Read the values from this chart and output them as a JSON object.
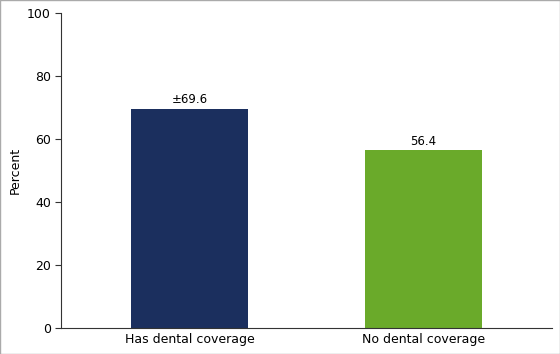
{
  "categories": [
    "Has dental coverage",
    "No dental coverage"
  ],
  "values": [
    69.6,
    56.4
  ],
  "bar_colors": [
    "#1b2f5e",
    "#6aaa2a"
  ],
  "bar_labels": [
    "±69.6",
    "56.4"
  ],
  "ylabel": "Percent",
  "ylim": [
    0,
    100
  ],
  "yticks": [
    0,
    20,
    40,
    60,
    80,
    100
  ],
  "bar_width": 0.5,
  "label_fontsize": 8.5,
  "tick_fontsize": 9,
  "ylabel_fontsize": 9,
  "background_color": "#ffffff",
  "edge_color": "none",
  "outer_border_color": "#aaaaaa",
  "spine_color": "#333333"
}
